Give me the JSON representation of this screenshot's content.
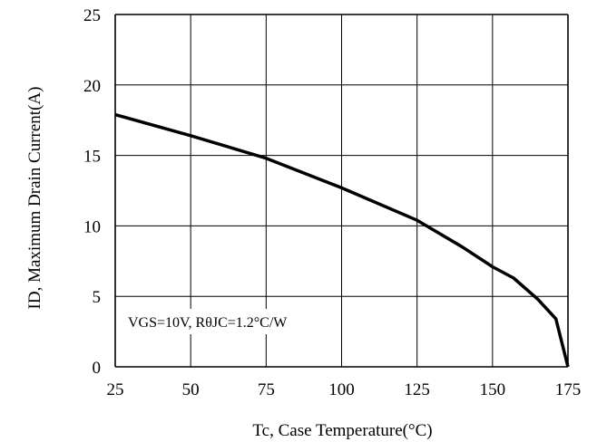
{
  "chart_data": {
    "type": "line",
    "title": "",
    "xlabel": "Tc, Case Temperature(°C)",
    "ylabel": "ID, Maximum Drain Current(A)",
    "xlim": [
      25,
      175
    ],
    "ylim": [
      0,
      25
    ],
    "x_ticks": [
      "25",
      "50",
      "75",
      "100",
      "125",
      "150",
      "175"
    ],
    "y_ticks": [
      "0",
      "5",
      "10",
      "15",
      "20",
      "25"
    ],
    "grid": true,
    "annotation": "VGS=10V, RθJC=1.2°C/W",
    "series": [
      {
        "x": [
          25,
          50,
          75,
          100,
          125,
          140,
          150,
          157,
          165,
          171,
          175
        ],
        "values": [
          17.9,
          16.4,
          14.8,
          12.7,
          10.4,
          8.5,
          7.1,
          6.3,
          4.8,
          3.4,
          0
        ]
      }
    ]
  }
}
